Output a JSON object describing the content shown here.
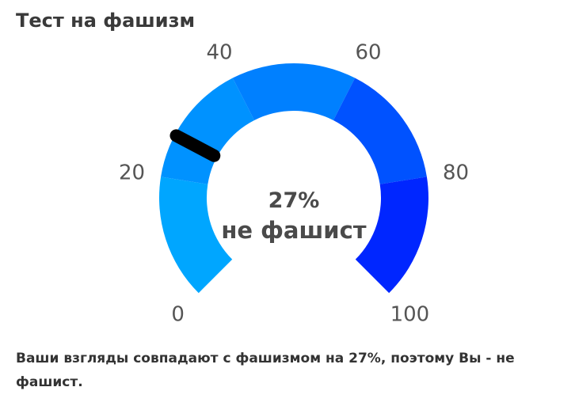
{
  "title": "Тест на фашизм",
  "gauge": {
    "value": 27,
    "min": 0,
    "max": 100,
    "value_label": "27%",
    "verdict": "не фашист",
    "ticks": [
      {
        "value": 0,
        "label": "0"
      },
      {
        "value": 20,
        "label": "20"
      },
      {
        "value": 40,
        "label": "40"
      },
      {
        "value": 60,
        "label": "60"
      },
      {
        "value": 80,
        "label": "80"
      },
      {
        "value": 100,
        "label": "100"
      }
    ],
    "segments": [
      {
        "from": 0,
        "to": 20,
        "color": "#00A6FF"
      },
      {
        "from": 20,
        "to": 40,
        "color": "#0092FF"
      },
      {
        "from": 40,
        "to": 60,
        "color": "#0080FF"
      },
      {
        "from": 60,
        "to": 80,
        "color": "#0052FF"
      },
      {
        "from": 80,
        "to": 100,
        "color": "#0026FF"
      }
    ],
    "needle_color": "#000000"
  },
  "result_text": "Ваши взгляды совпадают с фашизмом на 27%, поэтому Вы - не фашист."
}
